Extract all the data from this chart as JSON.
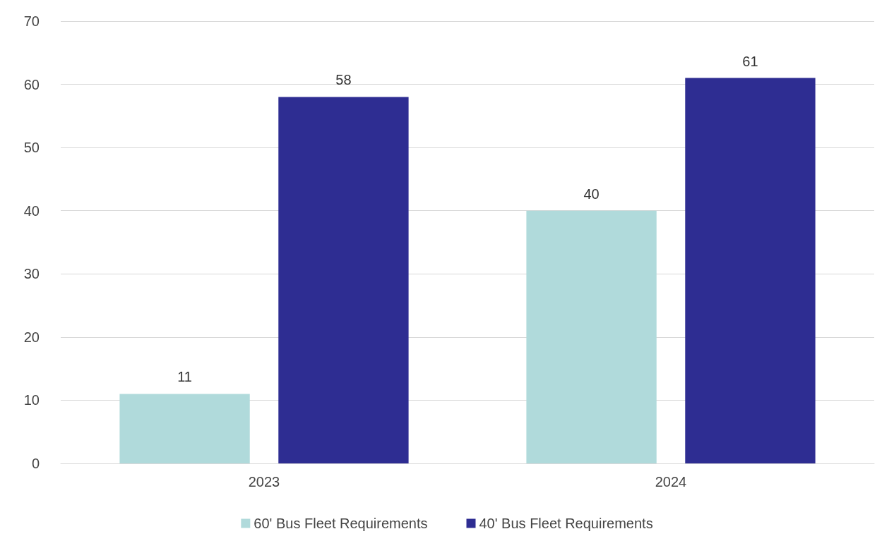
{
  "chart_data": {
    "type": "bar",
    "categories": [
      "2023",
      "2024"
    ],
    "series": [
      {
        "name": "60' Bus Fleet Requirements",
        "color": "#b0dadb",
        "values": [
          11,
          40
        ]
      },
      {
        "name": "40' Bus Fleet Requirements",
        "color": "#2e2d92",
        "values": [
          58,
          61
        ]
      }
    ],
    "ylim": [
      0,
      70
    ],
    "yticks": [
      0,
      10,
      20,
      30,
      40,
      50,
      60,
      70
    ],
    "grid": "y",
    "legend": "bottom",
    "data_labels": true
  }
}
